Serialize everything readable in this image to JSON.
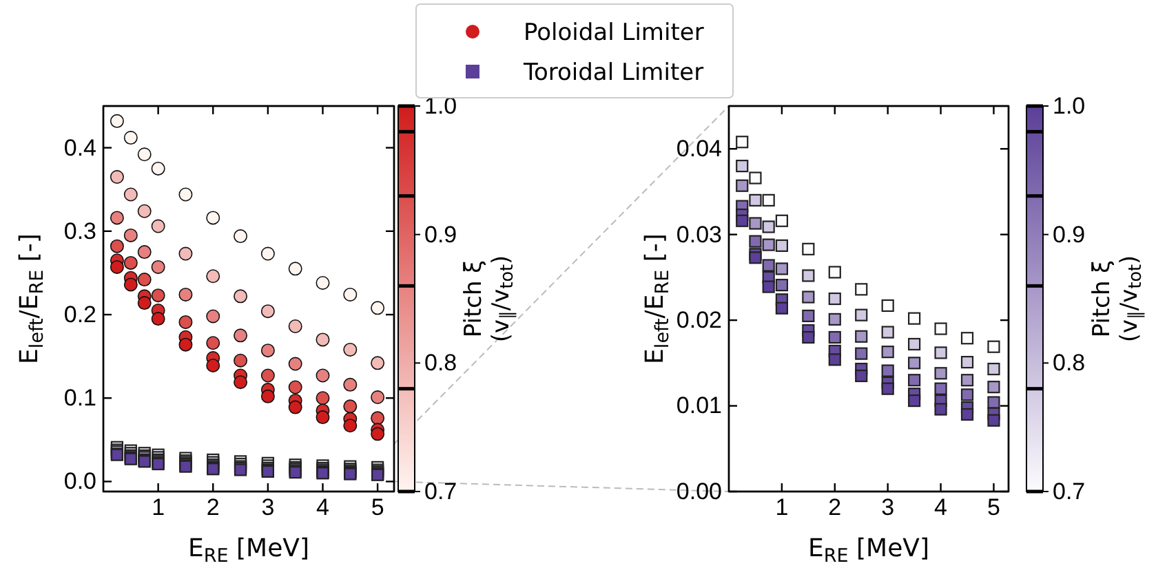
{
  "chart_data": [
    {
      "type": "scatter",
      "xlabel": "E$_{RE}$ [MeV]",
      "ylabel": "E$_{left}$/E$_{RE}$ [-]",
      "clabel": "Pitch ξ\n(v$_{∥}$/v$_{tot}$)",
      "xlim": [
        0,
        5.3
      ],
      "ylim": [
        -0.012,
        0.45
      ],
      "xticks": [
        1,
        2,
        3,
        4,
        5
      ],
      "yticks": [
        {
          "value": 0,
          "label": "0.0"
        },
        {
          "value": 0.1,
          "label": "0.1"
        },
        {
          "value": 0.2,
          "label": "0.2"
        },
        {
          "value": 0.3,
          "label": "0.3"
        },
        {
          "value": 0.4,
          "label": "0.4"
        }
      ],
      "clim": [
        0.7,
        1.0
      ],
      "cticks": [
        {
          "value": 0.7,
          "label": "0.7"
        },
        {
          "value": 0.8,
          "label": "0.8"
        },
        {
          "value": 0.9,
          "label": "0.9"
        },
        {
          "value": 1.0,
          "label": "1.0"
        }
      ],
      "grid": false,
      "legend": "top",
      "series": [
        {
          "name": "Poloidal Limiter",
          "marker": "circle",
          "colors": [
            "#fff5f0",
            "#f2bbb7",
            "#e6817f",
            "#db4f4d",
            "#d32a2a",
            "#d01c1c",
            "#fff5f0",
            "#f2bbb7",
            "#e6817f",
            "#db4f4d",
            "#d32a2a",
            "#d01c1c",
            "#fff5f0",
            "#f2bbb7",
            "#e6817f",
            "#db4f4d",
            "#d32a2a",
            "#d01c1c",
            "#fff5f0",
            "#f2bbb7",
            "#e6817f",
            "#db4f4d",
            "#d32a2a",
            "#d01c1c",
            "#fff5f0",
            "#f2bbb7",
            "#e6817f",
            "#db4f4d",
            "#d32a2a",
            "#d01c1c",
            "#fff5f0",
            "#f2bbb7",
            "#e6817f",
            "#db4f4d",
            "#d32a2a",
            "#d01c1c",
            "#fff5f0",
            "#f2bbb7",
            "#e6817f",
            "#db4f4d",
            "#d32a2a",
            "#d01c1c",
            "#fff5f0",
            "#f2bbb7",
            "#e6817f",
            "#db4f4d",
            "#d32a2a",
            "#d01c1c",
            "#fff5f0",
            "#f2bbb7",
            "#e6817f",
            "#db4f4d",
            "#d32a2a",
            "#d01c1c",
            "#fff5f0",
            "#f2bbb7",
            "#e6817f",
            "#db4f4d",
            "#d32a2a",
            "#d01c1c",
            "#fff5f0",
            "#f2bbb7",
            "#e6817f",
            "#db4f4d",
            "#d32a2a",
            "#d01c1c",
            "#fff5f0",
            "#f2bbb7",
            "#e6817f",
            "#db4f4d",
            "#d32a2a",
            "#d01c1c"
          ],
          "x": [
            0.25,
            0.25,
            0.25,
            0.25,
            0.25,
            0.25,
            0.5,
            0.5,
            0.5,
            0.5,
            0.5,
            0.5,
            0.75,
            0.75,
            0.75,
            0.75,
            0.75,
            0.75,
            1,
            1,
            1,
            1,
            1,
            1,
            1.5,
            1.5,
            1.5,
            1.5,
            1.5,
            1.5,
            2,
            2,
            2,
            2,
            2,
            2,
            2.5,
            2.5,
            2.5,
            2.5,
            2.5,
            2.5,
            3,
            3,
            3,
            3,
            3,
            3,
            3.5,
            3.5,
            3.5,
            3.5,
            3.5,
            3.5,
            4,
            4,
            4,
            4,
            4,
            4,
            4.5,
            4.5,
            4.5,
            4.5,
            4.5,
            4.5,
            5,
            5,
            5,
            5,
            5,
            5
          ],
          "values": [
            0.432,
            0.365,
            0.316,
            0.282,
            0.265,
            0.257,
            0.412,
            0.344,
            0.295,
            0.262,
            0.244,
            0.236,
            0.392,
            0.324,
            0.275,
            0.242,
            0.222,
            0.214,
            0.375,
            0.306,
            0.257,
            0.223,
            0.205,
            0.195,
            0.344,
            0.273,
            0.224,
            0.191,
            0.173,
            0.164,
            0.316,
            0.246,
            0.198,
            0.166,
            0.148,
            0.139,
            0.294,
            0.222,
            0.175,
            0.145,
            0.127,
            0.119,
            0.273,
            0.204,
            0.157,
            0.127,
            0.11,
            0.102,
            0.255,
            0.186,
            0.141,
            0.113,
            0.097,
            0.089,
            0.238,
            0.17,
            0.127,
            0.1,
            0.085,
            0.077,
            0.224,
            0.158,
            0.116,
            0.09,
            0.075,
            0.067,
            0.208,
            0.142,
            0.101,
            0.076,
            0.062,
            0.057
          ],
          "cvalues": [
            0.7,
            0.78,
            0.86,
            0.93,
            0.98,
            1.0,
            0.7,
            0.78,
            0.86,
            0.93,
            0.98,
            1.0,
            0.7,
            0.78,
            0.86,
            0.93,
            0.98,
            1.0,
            0.7,
            0.78,
            0.86,
            0.93,
            0.98,
            1.0,
            0.7,
            0.78,
            0.86,
            0.93,
            0.98,
            1.0,
            0.7,
            0.78,
            0.86,
            0.93,
            0.98,
            1.0,
            0.7,
            0.78,
            0.86,
            0.93,
            0.98,
            1.0,
            0.7,
            0.78,
            0.86,
            0.93,
            0.98,
            1.0,
            0.7,
            0.78,
            0.86,
            0.93,
            0.98,
            1.0,
            0.7,
            0.78,
            0.86,
            0.93,
            0.98,
            1.0,
            0.7,
            0.78,
            0.86,
            0.93,
            0.98,
            1.0,
            0.7,
            0.78,
            0.86,
            0.93,
            0.98,
            1.0
          ]
        },
        {
          "name": "Toroidal Limiter",
          "marker": "square",
          "x": [
            0.25,
            0.25,
            0.25,
            0.25,
            0.25,
            0.5,
            0.5,
            0.5,
            0.5,
            0.5,
            0.5,
            0.75,
            0.75,
            0.75,
            0.75,
            0.75,
            0.75,
            1,
            1,
            1,
            1,
            1,
            1,
            1.5,
            1.5,
            1.5,
            1.5,
            1.5,
            1.5,
            2,
            2,
            2,
            2,
            2,
            2,
            2.5,
            2.5,
            2.5,
            2.5,
            2.5,
            3,
            3,
            3,
            3,
            3,
            3,
            3.5,
            3.5,
            3.5,
            3.5,
            3.5,
            4,
            4,
            4,
            4,
            4,
            4,
            4.5,
            4.5,
            4.5,
            4.5,
            4.5,
            4.5,
            5,
            5,
            5,
            5,
            5,
            5
          ],
          "values": [
            0.041,
            0.038,
            0.036,
            0.033,
            0.032,
            0.037,
            0.034,
            0.031,
            0.029,
            0.028,
            0.027,
            0.034,
            0.031,
            0.029,
            0.026,
            0.025,
            0.024,
            0.032,
            0.029,
            0.026,
            0.024,
            0.022,
            0.021,
            0.028,
            0.025,
            0.023,
            0.021,
            0.019,
            0.018,
            0.026,
            0.023,
            0.02,
            0.018,
            0.016,
            0.015,
            0.024,
            0.021,
            0.018,
            0.016,
            0.014,
            0.022,
            0.019,
            0.016,
            0.014,
            0.013,
            0.012,
            0.02,
            0.017,
            0.015,
            0.013,
            0.011,
            0.019,
            0.016,
            0.014,
            0.012,
            0.011,
            0.01,
            0.018,
            0.015,
            0.013,
            0.011,
            0.01,
            0.009,
            0.017,
            0.014,
            0.012,
            0.01,
            0.009,
            0.008
          ],
          "colors": [
            "#fcfbfd",
            "#d1c9e2",
            "#a697c7",
            "#816bb0",
            "#5b3f98",
            "#fcfbfd",
            "#d1c9e2",
            "#a697c7",
            "#816bb0",
            "#664c9f",
            "#5b3f98",
            "#fcfbfd",
            "#d1c9e2",
            "#a697c7",
            "#816bb0",
            "#664c9f",
            "#5b3f98",
            "#fcfbfd",
            "#d1c9e2",
            "#a697c7",
            "#816bb0",
            "#664c9f",
            "#5b3f98",
            "#fcfbfd",
            "#d1c9e2",
            "#a697c7",
            "#816bb0",
            "#664c9f",
            "#5b3f98",
            "#fcfbfd",
            "#d1c9e2",
            "#a697c7",
            "#816bb0",
            "#664c9f",
            "#5b3f98",
            "#fcfbfd",
            "#d1c9e2",
            "#a697c7",
            "#816bb0",
            "#5b3f98",
            "#fcfbfd",
            "#d1c9e2",
            "#a697c7",
            "#816bb0",
            "#664c9f",
            "#5b3f98",
            "#fcfbfd",
            "#d1c9e2",
            "#a697c7",
            "#816bb0",
            "#5b3f98",
            "#fcfbfd",
            "#d1c9e2",
            "#a697c7",
            "#816bb0",
            "#664c9f",
            "#5b3f98",
            "#fcfbfd",
            "#d1c9e2",
            "#a697c7",
            "#816bb0",
            "#664c9f",
            "#5b3f98",
            "#fcfbfd",
            "#d1c9e2",
            "#a697c7",
            "#816bb0",
            "#664c9f",
            "#5b3f98"
          ]
        }
      ]
    },
    {
      "type": "scatter",
      "xlabel": "E$_{RE}$ [MeV]",
      "ylabel": "E$_{left}$/E$_{RE}$ [-]",
      "clabel": "Pitch ξ\n(v$_{∥}$/v$_{tot}$)",
      "xlim": [
        0,
        5.28
      ],
      "ylim": [
        0,
        0.045
      ],
      "xticks": [
        1,
        2,
        3,
        4,
        5
      ],
      "yticks": [
        {
          "value": 0,
          "label": "0.00"
        },
        {
          "value": 0.01,
          "label": "0.01"
        },
        {
          "value": 0.02,
          "label": "0.02"
        },
        {
          "value": 0.03,
          "label": "0.03"
        },
        {
          "value": 0.04,
          "label": "0.04"
        }
      ],
      "clim": [
        0.7,
        1.0
      ],
      "cticks": [
        {
          "value": 0.7,
          "label": "0.7"
        },
        {
          "value": 0.8,
          "label": "0.8"
        },
        {
          "value": 0.9,
          "label": "0.9"
        },
        {
          "value": 1.0,
          "label": "1.0"
        }
      ],
      "grid": false,
      "series": [
        {
          "marker": "square",
          "x": [
            0.25,
            0.25,
            0.25,
            0.25,
            0.25,
            0.25,
            0.5,
            0.5,
            0.5,
            0.5,
            0.5,
            0.5,
            0.75,
            0.75,
            0.75,
            0.75,
            0.75,
            0.75,
            1,
            1,
            1,
            1,
            1,
            1,
            1.5,
            1.5,
            1.5,
            1.5,
            1.5,
            1.5,
            2,
            2,
            2,
            2,
            2,
            2,
            2.5,
            2.5,
            2.5,
            2.5,
            2.5,
            2.5,
            3,
            3,
            3,
            3,
            3,
            3,
            3.5,
            3.5,
            3.5,
            3.5,
            3.5,
            3.5,
            4,
            4,
            4,
            4,
            4,
            4,
            4.5,
            4.5,
            4.5,
            4.5,
            4.5,
            4.5,
            5,
            5,
            5,
            5,
            5,
            5
          ],
          "values": [
            0.0408,
            0.038,
            0.0357,
            0.0333,
            0.0323,
            0.0316,
            0.0366,
            0.034,
            0.0313,
            0.0292,
            0.0277,
            0.0273,
            0.034,
            0.0309,
            0.0288,
            0.0264,
            0.025,
            0.0239,
            0.0316,
            0.0287,
            0.026,
            0.0241,
            0.0224,
            0.0214,
            0.0283,
            0.0252,
            0.0227,
            0.0205,
            0.0188,
            0.018,
            0.0256,
            0.0225,
            0.0201,
            0.018,
            0.0164,
            0.0154,
            0.0236,
            0.0206,
            0.0181,
            0.0161,
            0.0143,
            0.0135,
            0.0217,
            0.0186,
            0.0163,
            0.0141,
            0.0127,
            0.012,
            0.0202,
            0.0172,
            0.015,
            0.013,
            0.0114,
            0.0106,
            0.019,
            0.0162,
            0.0138,
            0.012,
            0.0106,
            0.0096,
            0.0179,
            0.0151,
            0.013,
            0.0113,
            0.0098,
            0.009,
            0.0169,
            0.0143,
            0.0122,
            0.0104,
            0.0091,
            0.0083
          ],
          "cvalues": [
            0.7,
            0.78,
            0.86,
            0.93,
            0.98,
            1.0,
            0.7,
            0.78,
            0.86,
            0.93,
            0.98,
            1.0,
            0.7,
            0.78,
            0.86,
            0.93,
            0.98,
            1.0,
            0.7,
            0.78,
            0.86,
            0.93,
            0.98,
            1.0,
            0.7,
            0.78,
            0.86,
            0.93,
            0.98,
            1.0,
            0.7,
            0.78,
            0.86,
            0.93,
            0.98,
            1.0,
            0.7,
            0.78,
            0.86,
            0.93,
            0.98,
            1.0,
            0.7,
            0.78,
            0.86,
            0.93,
            0.98,
            1.0,
            0.7,
            0.78,
            0.86,
            0.93,
            0.98,
            1.0,
            0.7,
            0.78,
            0.86,
            0.93,
            0.98,
            1.0,
            0.7,
            0.78,
            0.86,
            0.93,
            0.98,
            1.0,
            0.7,
            0.78,
            0.86,
            0.93,
            0.98,
            1.0
          ]
        }
      ]
    }
  ]
}
